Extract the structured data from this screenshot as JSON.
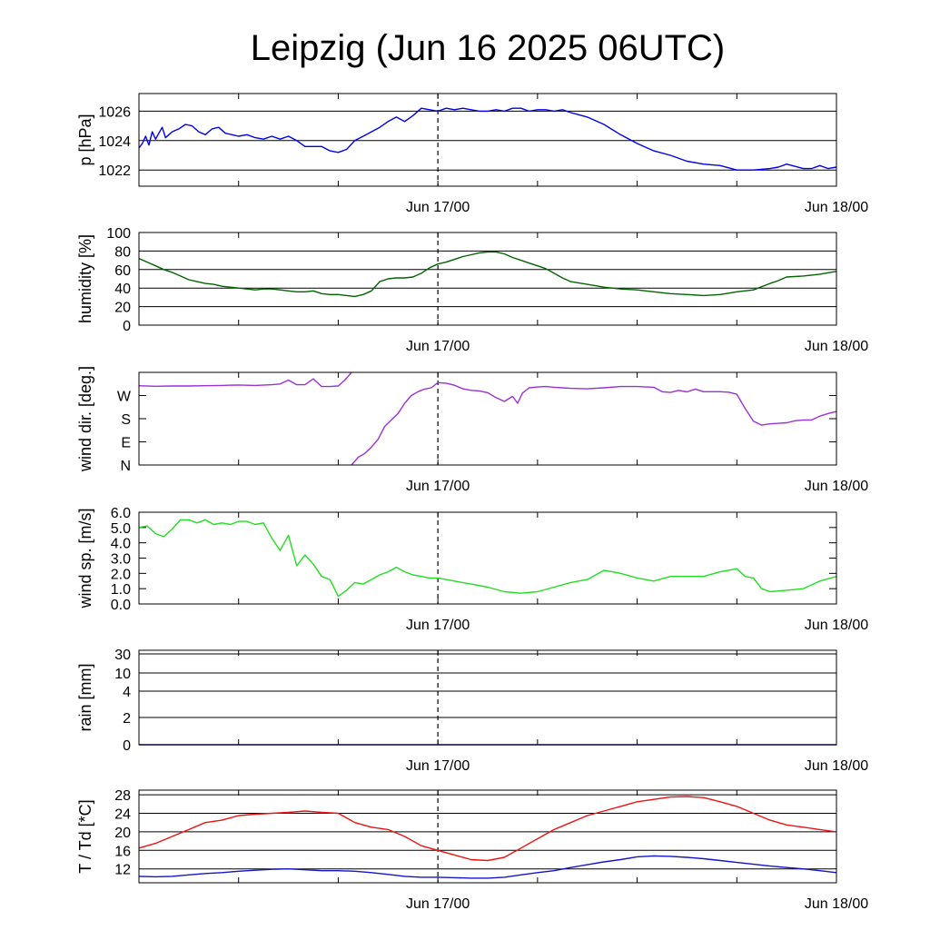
{
  "title": "Leipzig (Jun 16 2025 06UTC)",
  "colors": {
    "pressure": "#0000ee",
    "humidity": "#006400",
    "wind_dir": "#9b30d9",
    "wind_speed": "#22dd22",
    "temperature": "#ee1111",
    "dewpoint": "#1414cc",
    "grid": "#000000"
  },
  "chart_data": [
    {
      "type": "line",
      "panel": "pressure",
      "ylabel": "p [hPa]",
      "x_unit": "hours since Jun 16 06UTC",
      "x_ticks": [
        {
          "x": 18,
          "label": "Jun 17/00"
        },
        {
          "x": 42,
          "label": "Jun 18/00"
        }
      ],
      "xlim": [
        0,
        42
      ],
      "ylim": [
        1020.9,
        1027.2
      ],
      "yticks": [
        1022,
        1024,
        1026
      ],
      "ytick_labels": [
        "1022",
        "1024",
        "1026"
      ],
      "grid": "horizontal",
      "series": [
        {
          "color_key": "pressure",
          "x": [
            0,
            0.2,
            0.4,
            0.6,
            0.8,
            1.0,
            1.2,
            1.4,
            1.6,
            1.8,
            2.0,
            2.4,
            2.8,
            3.2,
            3.6,
            4.0,
            4.4,
            4.8,
            5.2,
            5.6,
            6.0,
            6.5,
            7.0,
            7.5,
            8.0,
            8.5,
            9.0,
            9.5,
            10.0,
            10.5,
            11.0,
            11.5,
            12.0,
            12.5,
            13.0,
            13.5,
            14.0,
            14.5,
            15.0,
            15.5,
            16.0,
            16.5,
            17.0,
            17.5,
            18.0,
            18.5,
            19.0,
            19.5,
            20.0,
            20.5,
            21.0,
            21.5,
            22.0,
            22.5,
            23.0,
            23.5,
            24.0,
            24.5,
            25.0,
            25.5,
            26.0,
            27.0,
            28.0,
            29.0,
            30.0,
            31.0,
            32.0,
            33.0,
            34.0,
            35.0,
            36.0,
            37.0,
            38.0,
            38.5,
            39.0,
            40.0,
            40.5,
            41.0,
            41.5,
            42.0
          ],
          "values": [
            1023.5,
            1023.8,
            1024.3,
            1023.7,
            1024.6,
            1024.1,
            1024.5,
            1024.9,
            1024.2,
            1024.4,
            1024.6,
            1024.8,
            1025.1,
            1025.0,
            1024.6,
            1024.4,
            1024.8,
            1024.9,
            1024.5,
            1024.4,
            1024.3,
            1024.4,
            1024.2,
            1024.1,
            1024.3,
            1024.1,
            1024.3,
            1024.0,
            1023.6,
            1023.6,
            1023.6,
            1023.3,
            1023.2,
            1023.4,
            1024.0,
            1024.3,
            1024.6,
            1024.9,
            1025.3,
            1025.6,
            1025.3,
            1025.7,
            1026.2,
            1026.1,
            1026.0,
            1026.2,
            1026.1,
            1026.2,
            1026.1,
            1026.0,
            1026.0,
            1026.1,
            1026.0,
            1026.2,
            1026.2,
            1026.0,
            1026.1,
            1026.1,
            1026.0,
            1026.1,
            1025.9,
            1025.6,
            1025.1,
            1024.4,
            1023.8,
            1023.3,
            1023.0,
            1022.6,
            1022.4,
            1022.3,
            1022.0,
            1022.0,
            1022.1,
            1022.2,
            1022.4,
            1022.1,
            1022.1,
            1022.3,
            1022.1,
            1022.2
          ]
        }
      ]
    },
    {
      "type": "line",
      "panel": "humidity",
      "ylabel": "humidity [%]",
      "x_ticks": [
        {
          "x": 18,
          "label": "Jun 17/00"
        },
        {
          "x": 42,
          "label": "Jun 18/00"
        }
      ],
      "xlim": [
        0,
        42
      ],
      "ylim": [
        0,
        100
      ],
      "yticks": [
        0,
        20,
        40,
        60,
        80,
        100
      ],
      "ytick_labels": [
        "0",
        "20",
        "40",
        "60",
        "80",
        "100"
      ],
      "grid": "horizontal",
      "series": [
        {
          "color_key": "humidity",
          "x": [
            0,
            0.5,
            1,
            1.5,
            2,
            2.5,
            3,
            3.5,
            4,
            4.5,
            5,
            5.5,
            6,
            6.5,
            7,
            7.5,
            8,
            8.5,
            9,
            9.5,
            10,
            10.5,
            11,
            11.5,
            12,
            12.5,
            13,
            13.5,
            14,
            14.5,
            15,
            15.5,
            16,
            16.5,
            17,
            17.5,
            18,
            18.5,
            19,
            19.5,
            20,
            20.5,
            21,
            21.5,
            22,
            22.5,
            23,
            23.5,
            24,
            24.5,
            25,
            25.5,
            26,
            27,
            28,
            29,
            30,
            31,
            32,
            33,
            34,
            35,
            36,
            37,
            38,
            38.5,
            39,
            40,
            41,
            42
          ],
          "values": [
            72,
            68,
            64,
            60,
            57,
            53,
            49,
            47,
            45,
            44,
            42,
            41,
            40,
            39,
            38,
            39,
            39,
            38,
            37,
            36,
            36,
            37,
            34,
            33,
            33,
            32,
            31,
            33,
            37,
            47,
            50,
            51,
            51,
            52,
            56,
            62,
            66,
            68,
            71,
            74,
            76,
            78,
            79,
            79,
            77,
            73,
            70,
            67,
            64,
            61,
            56,
            51,
            47,
            44,
            41,
            39,
            38,
            36,
            34,
            33,
            32,
            33,
            36,
            38,
            45,
            48,
            52,
            53,
            55,
            58
          ]
        }
      ]
    },
    {
      "type": "line",
      "panel": "wind_dir",
      "ylabel": "wind dir. [deg.]",
      "x_ticks": [
        {
          "x": 18,
          "label": "Jun 17/00"
        },
        {
          "x": 42,
          "label": "Jun 18/00"
        }
      ],
      "xlim": [
        0,
        42
      ],
      "ylim": [
        0,
        360
      ],
      "yticks": [
        0,
        90,
        180,
        270
      ],
      "ytick_labels": [
        "N",
        "E",
        "S",
        "W"
      ],
      "grid": "none",
      "series": [
        {
          "color_key": "wind_dir",
          "segments": [
            {
              "x": [
                0,
                1,
                2,
                3,
                4,
                5,
                6,
                7,
                8,
                8.5,
                9,
                9.5,
                10,
                10.5,
                11,
                11.5,
                12,
                12.4,
                12.8
              ],
              "values": [
                308,
                306,
                307,
                307,
                308,
                309,
                311,
                309,
                312,
                315,
                330,
                312,
                312,
                335,
                305,
                305,
                307,
                330,
                360
              ]
            },
            {
              "x": [
                12.8,
                13.2,
                13.6,
                14.0,
                14.4,
                14.8,
                15.2,
                15.6,
                16.0,
                16.4,
                16.8,
                17.2,
                17.6,
                18.0,
                18.5,
                19.0,
                19.5,
                20.0,
                20.5,
                21.0,
                21.5,
                22.0,
                22.5,
                22.8,
                23.1,
                23.5,
                24.0,
                24.5,
                25.0,
                25.5,
                26.0,
                27.0,
                28.0,
                29.0,
                30.0,
                31.0,
                31.5,
                32.0,
                32.5,
                33.0,
                33.5,
                34.0,
                35.0,
                35.5,
                36.0,
                36.5,
                37.0,
                37.5,
                38.0,
                38.5,
                39.0,
                39.5,
                40.0,
                40.5,
                41.0,
                41.5,
                42.0
              ],
              "values": [
                0,
                30,
                45,
                70,
                100,
                150,
                175,
                200,
                240,
                270,
                285,
                295,
                300,
                320,
                318,
                310,
                296,
                290,
                288,
                281,
                262,
                247,
                267,
                240,
                280,
                300,
                303,
                305,
                302,
                300,
                298,
                296,
                300,
                305,
                305,
                302,
                285,
                282,
                290,
                284,
                295,
                285,
                285,
                283,
                275,
                220,
                170,
                155,
                160,
                162,
                164,
                172,
                175,
                175,
                190,
                200,
                208
              ]
            }
          ]
        }
      ]
    },
    {
      "type": "line",
      "panel": "wind_speed",
      "ylabel": "wind sp. [m/s]",
      "x_ticks": [
        {
          "x": 18,
          "label": "Jun 17/00"
        },
        {
          "x": 42,
          "label": "Jun 18/00"
        }
      ],
      "xlim": [
        0,
        42
      ],
      "ylim": [
        0,
        6
      ],
      "yticks": [
        0,
        1,
        2,
        3,
        4,
        5,
        6
      ],
      "ytick_labels": [
        "0.0",
        "1.0",
        "2.0",
        "3.0",
        "4.0",
        "5.0",
        "6.0"
      ],
      "grid": "none",
      "series": [
        {
          "color_key": "wind_speed",
          "x": [
            0,
            0.5,
            1,
            1.5,
            2,
            2.5,
            3,
            3.5,
            4,
            4.5,
            5,
            5.5,
            6,
            6.5,
            7,
            7.5,
            8,
            8.5,
            9,
            9.5,
            10,
            10.5,
            11,
            11.5,
            12,
            12.5,
            13,
            13.5,
            14,
            14.5,
            15,
            15.5,
            16,
            16.5,
            17,
            17.5,
            18,
            18.5,
            19,
            20,
            21,
            22,
            23,
            24,
            25,
            26,
            27,
            28,
            28.5,
            29,
            30,
            31,
            32,
            33,
            34,
            35,
            36,
            36.5,
            37,
            37.5,
            38,
            39,
            40,
            41,
            42
          ],
          "values": [
            5.0,
            5.1,
            4.6,
            4.4,
            4.9,
            5.5,
            5.5,
            5.3,
            5.5,
            5.2,
            5.3,
            5.2,
            5.4,
            5.4,
            5.2,
            5.3,
            4.3,
            3.5,
            4.5,
            2.5,
            3.2,
            2.6,
            1.8,
            1.6,
            0.5,
            0.9,
            1.4,
            1.3,
            1.6,
            1.9,
            2.1,
            2.4,
            2.1,
            1.9,
            1.8,
            1.7,
            1.7,
            1.6,
            1.5,
            1.3,
            1.1,
            0.8,
            0.7,
            0.8,
            1.1,
            1.4,
            1.6,
            2.2,
            2.1,
            2.0,
            1.7,
            1.5,
            1.8,
            1.8,
            1.8,
            2.1,
            2.3,
            1.8,
            1.7,
            1.0,
            0.8,
            0.9,
            1.0,
            1.5,
            1.8
          ]
        }
      ]
    },
    {
      "type": "line",
      "panel": "rain",
      "ylabel": "rain [mm]",
      "x_ticks": [
        {
          "x": 18,
          "label": "Jun 17/00"
        },
        {
          "x": 42,
          "label": "Jun 18/00"
        }
      ],
      "xlim": [
        0,
        42
      ],
      "yticks": [
        0,
        2,
        4,
        10,
        30
      ],
      "ytick_labels": [
        "0",
        "2",
        "4",
        "10",
        "30"
      ],
      "grid": "horizontal",
      "series": [
        {
          "color_key": "pressure",
          "x": [
            0,
            42
          ],
          "values": [
            0,
            0
          ]
        }
      ]
    },
    {
      "type": "line",
      "panel": "temperature",
      "ylabel": "T / Td [*C]",
      "x_ticks": [
        {
          "x": 18,
          "label": "Jun 17/00"
        },
        {
          "x": 42,
          "label": "Jun 18/00"
        }
      ],
      "xlim": [
        0,
        42
      ],
      "ylim": [
        9,
        29
      ],
      "yticks": [
        12,
        16,
        20,
        24,
        28
      ],
      "ytick_labels": [
        "12",
        "16",
        "20",
        "24",
        "28"
      ],
      "grid": "horizontal",
      "series": [
        {
          "name_key": "T",
          "color_key": "temperature",
          "x": [
            0,
            1,
            2,
            3,
            4,
            5,
            6,
            7,
            8,
            9,
            10,
            11,
            12,
            13,
            14,
            15,
            16,
            17,
            18,
            19,
            20,
            21,
            22,
            23,
            24,
            25,
            26,
            27,
            28,
            29,
            30,
            31,
            32,
            33,
            34,
            35,
            36,
            37,
            38,
            39,
            40,
            41,
            42
          ],
          "values": [
            16.5,
            17.5,
            19.0,
            20.5,
            22.0,
            22.5,
            23.5,
            23.8,
            24.0,
            24.2,
            24.5,
            24.2,
            24.0,
            22.0,
            21.0,
            20.5,
            19.0,
            17.0,
            16.0,
            15.0,
            14.0,
            13.8,
            14.5,
            16.5,
            18.5,
            20.5,
            22.0,
            23.5,
            24.5,
            25.5,
            26.5,
            27.0,
            27.5,
            27.6,
            27.4,
            26.5,
            25.5,
            24.0,
            22.5,
            21.5,
            21.0,
            20.5,
            20.0
          ]
        },
        {
          "name_key": "Td",
          "color_key": "dewpoint",
          "x": [
            0,
            1,
            2,
            3,
            4,
            5,
            6,
            7,
            8,
            9,
            10,
            11,
            12,
            13,
            14,
            15,
            16,
            17,
            18,
            19,
            20,
            21,
            22,
            23,
            24,
            25,
            26,
            27,
            28,
            29,
            30,
            31,
            32,
            33,
            34,
            35,
            36,
            37,
            38,
            39,
            40,
            41,
            42
          ],
          "values": [
            10.4,
            10.3,
            10.4,
            10.7,
            11.0,
            11.2,
            11.5,
            11.7,
            11.9,
            12.0,
            11.8,
            11.6,
            11.6,
            11.5,
            11.2,
            10.8,
            10.4,
            10.2,
            10.2,
            10.1,
            10.0,
            10.0,
            10.2,
            10.7,
            11.2,
            11.6,
            12.3,
            12.9,
            13.5,
            14.0,
            14.6,
            14.8,
            14.7,
            14.5,
            14.2,
            13.8,
            13.4,
            13.0,
            12.6,
            12.3,
            12.0,
            11.6,
            11.2
          ]
        }
      ]
    }
  ]
}
